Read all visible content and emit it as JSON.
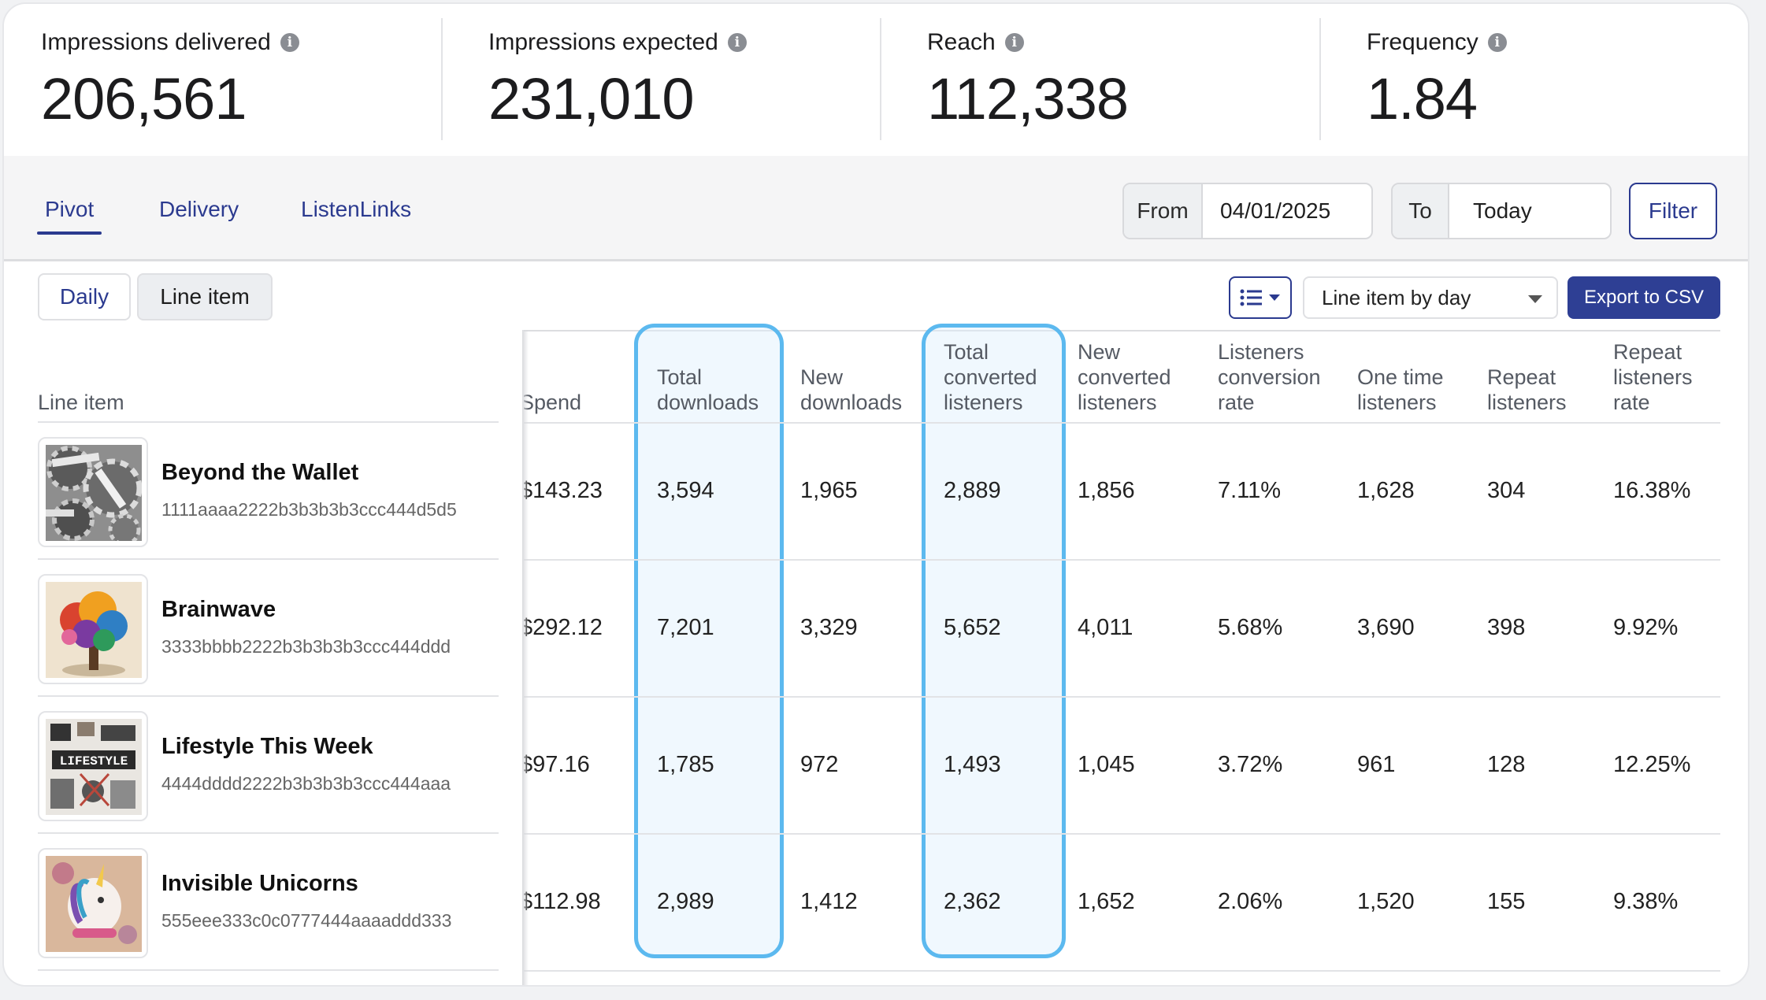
{
  "metrics": [
    {
      "label": "Impressions delivered",
      "value": "206,561",
      "icon": "info-icon"
    },
    {
      "label": "Impressions expected",
      "value": "231,010",
      "icon": "info-icon"
    },
    {
      "label": "Reach",
      "value": "112,338",
      "icon": "info-icon"
    },
    {
      "label": "Frequency",
      "value": "1.84",
      "icon": "info-icon"
    }
  ],
  "tabs": [
    {
      "label": "Pivot",
      "active": true
    },
    {
      "label": "Delivery",
      "active": false
    },
    {
      "label": "ListenLinks",
      "active": false
    }
  ],
  "date_filter": {
    "from_label": "From",
    "from_value": "04/01/2025",
    "to_label": "To",
    "to_value": "Today",
    "filter_label": "Filter"
  },
  "view_toggle": {
    "daily": "Daily",
    "line_item": "Line item",
    "selected": "Line item"
  },
  "toolbar": {
    "columns_icon": "list-icon",
    "select_value": "Line item by day",
    "export_label": "Export to CSV"
  },
  "table": {
    "headers": {
      "line_item": "Line item",
      "spend": "Spend",
      "total_downloads": [
        "Total",
        "downloads"
      ],
      "new_downloads": [
        "New",
        "downloads"
      ],
      "total_converted": [
        "Total",
        "converted",
        "listeners"
      ],
      "new_converted": [
        "New",
        "converted",
        "listeners"
      ],
      "conversion_rate": [
        "Listeners",
        "conversion",
        "rate"
      ],
      "one_time": [
        "One time",
        "listeners"
      ],
      "repeat": [
        "Repeat",
        "listeners"
      ],
      "repeat_rate": [
        "Repeat",
        "listeners",
        "rate"
      ]
    },
    "rows": [
      {
        "name": "Beyond the Wallet",
        "id": "1111aaaa2222b3b3b3b3ccc444d5d5",
        "thumb": "assets-wealth-gears-image",
        "spend": "$143.23",
        "total_downloads": "3,594",
        "new_downloads": "1,965",
        "total_converted": "2,889",
        "new_converted": "1,856",
        "conversion_rate": "7.11%",
        "one_time": "1,628",
        "repeat": "304",
        "repeat_rate": "16.38%"
      },
      {
        "name": "Brainwave",
        "id": "3333bbbb2222b3b3b3b3ccc444ddd",
        "thumb": "colorful-brain-tree-image",
        "spend": "$292.12",
        "total_downloads": "7,201",
        "new_downloads": "3,329",
        "total_converted": "5,652",
        "new_converted": "4,011",
        "conversion_rate": "5.68%",
        "one_time": "3,690",
        "repeat": "398",
        "repeat_rate": "9.92%"
      },
      {
        "name": "Lifestyle This Week",
        "id": "4444dddd2222b3b3b3b3ccc444aaa",
        "thumb": "lifestyle-collage-image",
        "spend": "$97.16",
        "total_downloads": "1,785",
        "new_downloads": "972",
        "total_converted": "1,493",
        "new_converted": "1,045",
        "conversion_rate": "3.72%",
        "one_time": "961",
        "repeat": "128",
        "repeat_rate": "12.25%"
      },
      {
        "name": "Invisible Unicorns",
        "id": "555eee333c0c0777444aaaaddd333",
        "thumb": "unicorn-illustration-image",
        "spend": "$112.98",
        "total_downloads": "2,989",
        "new_downloads": "1,412",
        "total_converted": "2,362",
        "new_converted": "1,652",
        "conversion_rate": "2.06%",
        "one_time": "1,520",
        "repeat": "155",
        "repeat_rate": "9.38%"
      }
    ]
  },
  "colors": {
    "accent": "#2b3a8f",
    "highlight": "#5cb9ef",
    "export_bg": "#2e3f94"
  }
}
